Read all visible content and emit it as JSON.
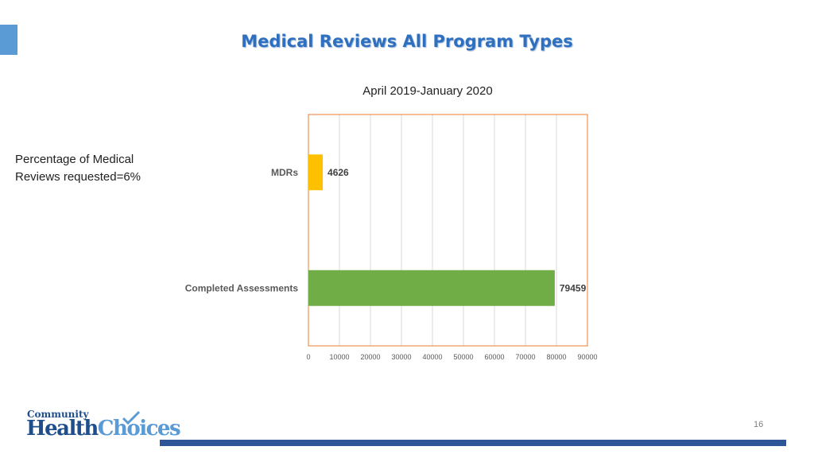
{
  "slide": {
    "title": "Medical Reviews All Program Types",
    "subtitle": "April 2019-January 2020",
    "side_note": "Percentage of Medical Reviews requested=6%",
    "page_number": "16"
  },
  "logo": {
    "line1": "Community",
    "line2_a": "Health",
    "line2_b": "Choices"
  },
  "colors": {
    "title": "#2f6fbf",
    "accent": "#5b9bd5",
    "footer_bar": "#2e5597",
    "plot_border": "#ed7d31"
  },
  "chart_data": {
    "type": "bar",
    "orientation": "horizontal",
    "categories": [
      "MDRs",
      "Completed Assessments"
    ],
    "values": [
      4626,
      79459
    ],
    "colors": [
      "#ffc000",
      "#70ad47"
    ],
    "data_labels": [
      "4626",
      "79459"
    ],
    "xlim": [
      0,
      90000
    ],
    "x_ticks": [
      "0",
      "10000",
      "20000",
      "30000",
      "40000",
      "50000",
      "60000",
      "70000",
      "80000",
      "90000"
    ],
    "grid": "vertical"
  }
}
